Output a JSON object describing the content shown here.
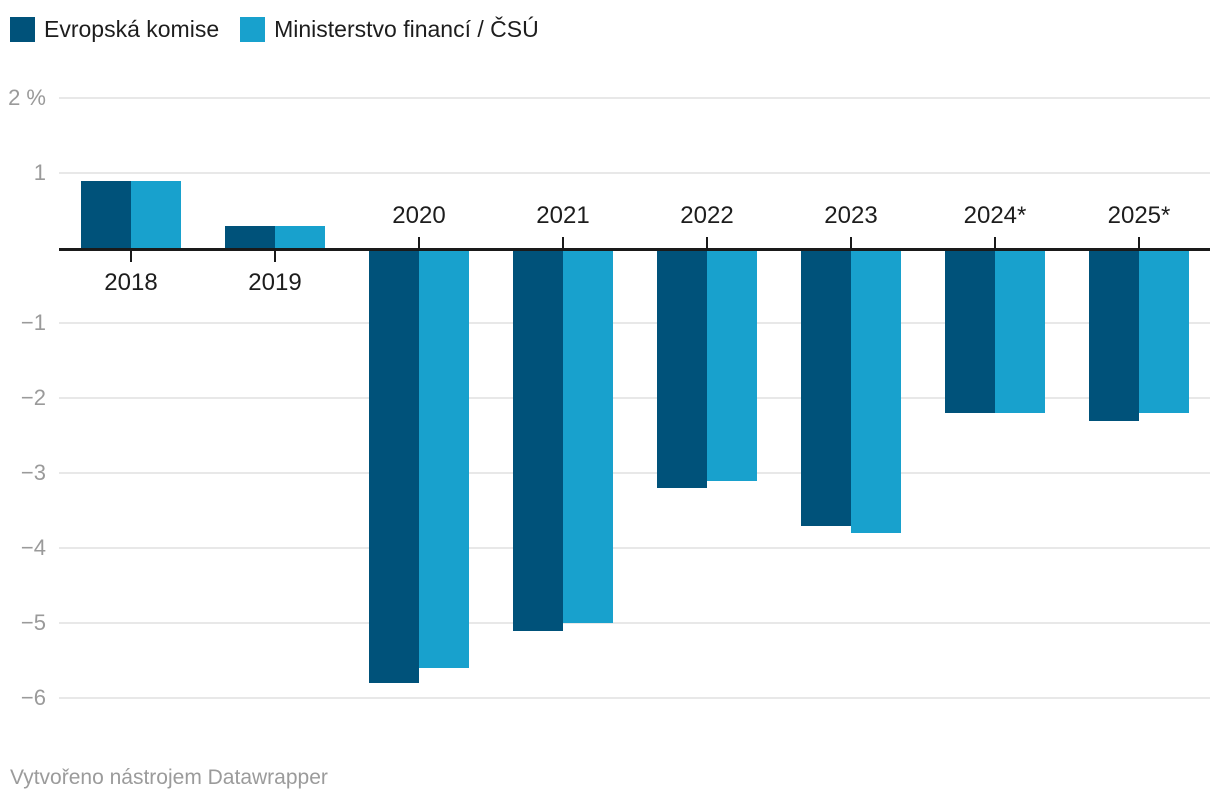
{
  "footer": {
    "credit": "Vytvořeno nástrojem Datawrapper"
  },
  "colors": {
    "series_dark": "#00527a",
    "series_light": "#18a1cd",
    "axis_line": "#1a1a1a",
    "gridline": "#e8e8e8",
    "y_label": "#9a9a9a",
    "x_label": "#1d1d1d"
  },
  "chart_data": {
    "type": "bar",
    "title": "",
    "xlabel": "",
    "ylabel": "%",
    "categories": [
      "2018",
      "2019",
      "2020",
      "2021",
      "2022",
      "2023",
      "2024*",
      "2025*"
    ],
    "series": [
      {
        "name": "Evropská komise",
        "color": "#00527a",
        "values": [
          0.9,
          0.3,
          -5.8,
          -5.1,
          -3.2,
          -3.7,
          -2.2,
          -2.3
        ]
      },
      {
        "name": "Ministerstvo financí / ČSÚ",
        "color": "#18a1cd",
        "values": [
          0.9,
          0.3,
          -5.6,
          -5.0,
          -3.1,
          -3.8,
          -2.2,
          -2.2
        ]
      }
    ],
    "y_ticks": [
      {
        "value": 2,
        "label": "2 %"
      },
      {
        "value": 1,
        "label": "1"
      },
      {
        "value": -1,
        "label": "−1"
      },
      {
        "value": -2,
        "label": "−2"
      },
      {
        "value": -3,
        "label": "−3"
      },
      {
        "value": -4,
        "label": "−4"
      },
      {
        "value": -5,
        "label": "−5"
      },
      {
        "value": -6,
        "label": "−6"
      }
    ],
    "ylim": [
      -6.6,
      2.0
    ],
    "grid": true,
    "legend_position": "top-left"
  }
}
